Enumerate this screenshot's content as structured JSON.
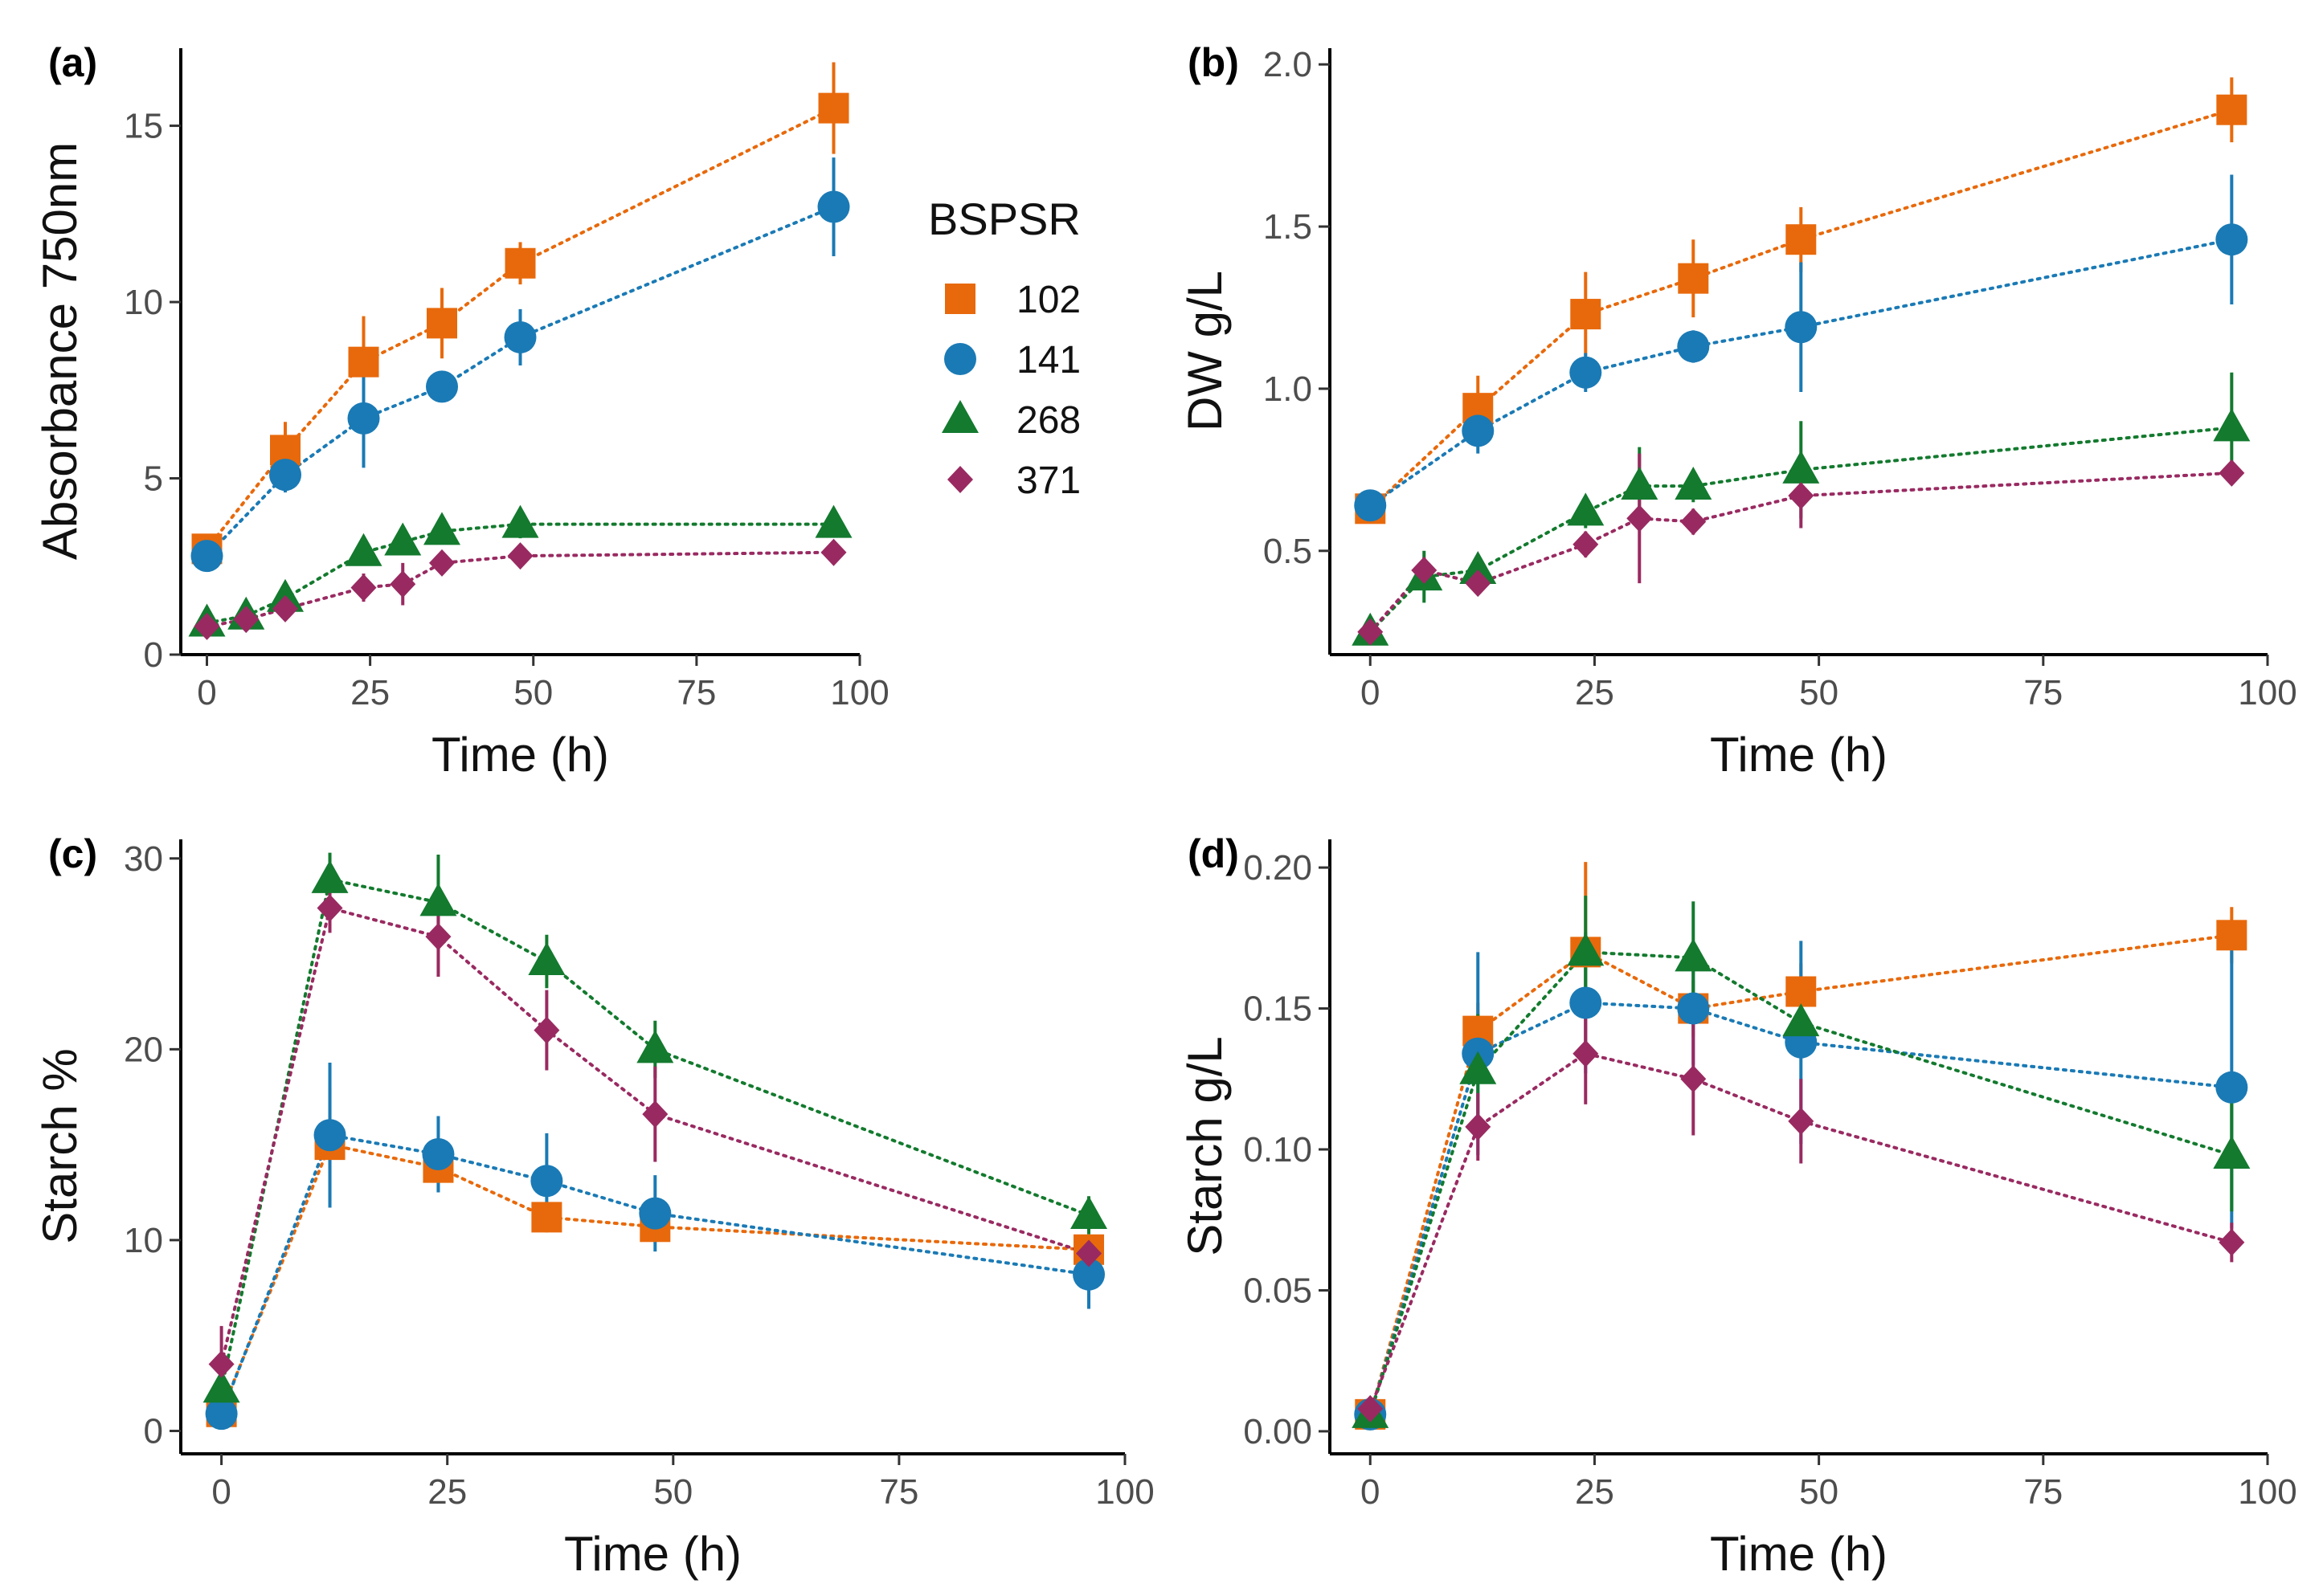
{
  "figure_title": "",
  "legend": {
    "title": "BSPSR",
    "entries": [
      {
        "label": "102",
        "shape": "square",
        "color": "#e8690b"
      },
      {
        "label": "141",
        "shape": "circle",
        "color": "#1a7ab5"
      },
      {
        "label": "268",
        "shape": "triangle",
        "color": "#137a2e"
      },
      {
        "label": "371",
        "shape": "diamond",
        "color": "#992a61"
      }
    ]
  },
  "chart_data": [
    {
      "panel": "(a)",
      "type": "scatter",
      "xlabel": "Time (h)",
      "ylabel": "Absorbance 750nm",
      "xlim": [
        -4,
        100
      ],
      "ylim": [
        0,
        17.2
      ],
      "xticks": [
        0,
        25,
        50,
        75,
        100
      ],
      "yticks": [
        0,
        5,
        10,
        15
      ],
      "series": [
        {
          "name": "102",
          "x": [
            0,
            12,
            24,
            36,
            48,
            96
          ],
          "y": [
            3.0,
            5.8,
            8.3,
            9.4,
            11.1,
            15.5
          ],
          "err": [
            0.3,
            0.8,
            1.3,
            1.0,
            0.6,
            1.3
          ]
        },
        {
          "name": "141",
          "x": [
            0,
            12,
            24,
            36,
            48,
            96
          ],
          "y": [
            2.8,
            5.1,
            6.7,
            7.6,
            9.0,
            12.7
          ],
          "err": [
            0.2,
            0.5,
            1.4,
            0.4,
            0.8,
            1.4
          ]
        },
        {
          "name": "268",
          "x": [
            0,
            6,
            12,
            24,
            30,
            36,
            48,
            96
          ],
          "y": [
            0.9,
            1.1,
            1.6,
            2.9,
            3.2,
            3.5,
            3.7,
            3.7
          ],
          "err": [
            0.2,
            0.2,
            0.3,
            0.3,
            0.2,
            0.3,
            0.4,
            0.3
          ]
        },
        {
          "name": "371",
          "x": [
            0,
            6,
            12,
            24,
            30,
            36,
            48,
            96
          ],
          "y": [
            0.8,
            1.0,
            1.3,
            1.9,
            2.0,
            2.6,
            2.8,
            2.9
          ],
          "err": [
            0.2,
            0.2,
            0.3,
            0.4,
            0.6,
            0.3,
            0.3,
            0.2
          ]
        }
      ]
    },
    {
      "panel": "(b)",
      "type": "scatter",
      "xlabel": "Time (h)",
      "ylabel": "DW g/L",
      "xlim": [
        -4.5,
        100
      ],
      "ylim": [
        0.18,
        2.05
      ],
      "xticks": [
        0,
        25,
        50,
        75,
        100
      ],
      "yticks": [
        0.5,
        1.0,
        1.5,
        2.0
      ],
      "ytick_labels": [
        "0.5",
        "1.0",
        "1.5",
        "2.0"
      ],
      "series": [
        {
          "name": "102",
          "x": [
            0,
            12,
            24,
            36,
            48,
            96
          ],
          "y": [
            0.63,
            0.94,
            1.23,
            1.34,
            1.46,
            1.86
          ],
          "err": [
            0.03,
            0.1,
            0.13,
            0.12,
            0.1,
            0.1
          ]
        },
        {
          "name": "141",
          "x": [
            0,
            12,
            24,
            36,
            48,
            96
          ],
          "y": [
            0.64,
            0.87,
            1.05,
            1.13,
            1.19,
            1.46
          ],
          "err": [
            0.03,
            0.07,
            0.06,
            0.05,
            0.2,
            0.2
          ]
        },
        {
          "name": "268",
          "x": [
            0,
            6,
            12,
            24,
            30,
            36,
            48,
            96
          ],
          "y": [
            0.25,
            0.42,
            0.44,
            0.62,
            0.7,
            0.7,
            0.75,
            0.88
          ],
          "err": [
            0.02,
            0.08,
            0.05,
            0.05,
            0.12,
            0.05,
            0.15,
            0.17
          ]
        },
        {
          "name": "371",
          "x": [
            0,
            6,
            12,
            24,
            30,
            36,
            48,
            96
          ],
          "y": [
            0.25,
            0.44,
            0.4,
            0.52,
            0.6,
            0.59,
            0.67,
            0.74
          ],
          "err": [
            0.02,
            0.04,
            0.03,
            0.04,
            0.2,
            0.04,
            0.1,
            0.03
          ]
        }
      ]
    },
    {
      "panel": "(c)",
      "type": "scatter",
      "xlabel": "Time (h)",
      "ylabel": "Starch %",
      "xlim": [
        -4.5,
        100
      ],
      "ylim": [
        -1.2,
        31
      ],
      "xticks": [
        0,
        25,
        50,
        75,
        100
      ],
      "yticks": [
        0,
        10,
        20,
        30
      ],
      "series": [
        {
          "name": "102",
          "x": [
            0,
            12,
            24,
            36,
            48,
            96
          ],
          "y": [
            1.0,
            15.0,
            13.8,
            11.2,
            10.7,
            9.5
          ],
          "err": [
            0.3,
            3.0,
            1.3,
            0.8,
            0.8,
            0.6
          ]
        },
        {
          "name": "141",
          "x": [
            0,
            12,
            24,
            36,
            48,
            96
          ],
          "y": [
            0.9,
            15.5,
            14.5,
            13.1,
            11.4,
            8.2
          ],
          "err": [
            0.3,
            3.8,
            2.0,
            2.5,
            2.0,
            1.8
          ]
        },
        {
          "name": "268",
          "x": [
            0,
            12,
            24,
            36,
            48,
            96
          ],
          "y": [
            2.2,
            28.9,
            27.7,
            24.6,
            20.0,
            11.3
          ],
          "err": [
            1.0,
            1.4,
            2.5,
            1.4,
            1.5,
            1.0
          ]
        },
        {
          "name": "371",
          "x": [
            0,
            12,
            24,
            36,
            48,
            96
          ],
          "y": [
            3.5,
            27.4,
            25.9,
            21.0,
            16.6,
            9.3
          ],
          "err": [
            2.0,
            1.3,
            2.1,
            2.1,
            2.5,
            0.8
          ]
        }
      ]
    },
    {
      "panel": "(d)",
      "type": "scatter",
      "xlabel": "Time (h)",
      "ylabel": "Starch g/L",
      "xlim": [
        -4.5,
        100
      ],
      "ylim": [
        -0.008,
        0.21
      ],
      "xticks": [
        0,
        25,
        50,
        75,
        100
      ],
      "yticks": [
        0,
        0.05,
        0.1,
        0.15,
        0.2
      ],
      "ytick_labels": [
        "0.00",
        "0.05",
        "0.10",
        "0.15",
        "0.20"
      ],
      "series": [
        {
          "name": "102",
          "x": [
            0,
            12,
            24,
            36,
            48,
            96
          ],
          "y": [
            0.006,
            0.142,
            0.17,
            0.15,
            0.156,
            0.176
          ],
          "err": [
            0.003,
            0.01,
            0.032,
            0.01,
            0.01,
            0.01
          ]
        },
        {
          "name": "141",
          "x": [
            0,
            12,
            24,
            36,
            48,
            96
          ],
          "y": [
            0.006,
            0.134,
            0.152,
            0.15,
            0.138,
            0.122
          ],
          "err": [
            0.003,
            0.036,
            0.025,
            0.02,
            0.036,
            0.05
          ]
        },
        {
          "name": "268",
          "x": [
            0,
            12,
            24,
            36,
            48,
            96
          ],
          "y": [
            0.006,
            0.128,
            0.17,
            0.168,
            0.145,
            0.098
          ],
          "err": [
            0.003,
            0.02,
            0.02,
            0.02,
            0.01,
            0.02
          ]
        },
        {
          "name": "371",
          "x": [
            0,
            12,
            24,
            36,
            48,
            96
          ],
          "y": [
            0.008,
            0.108,
            0.134,
            0.125,
            0.11,
            0.067
          ],
          "err": [
            0.003,
            0.012,
            0.018,
            0.02,
            0.015,
            0.007
          ]
        }
      ]
    }
  ]
}
